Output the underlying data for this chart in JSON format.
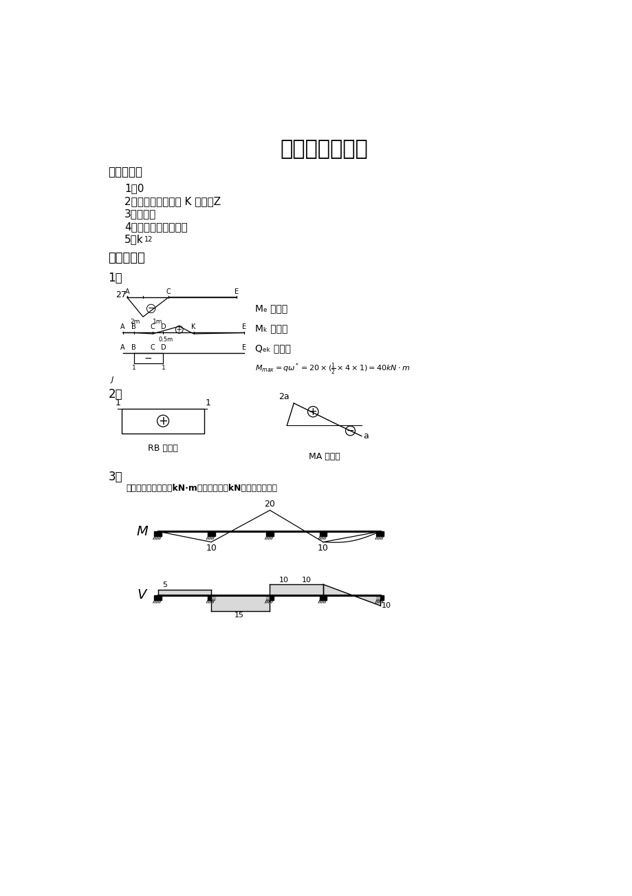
{
  "title": "结构力学第三次",
  "title_fontsize": 22,
  "bg_color": "#ffffff",
  "text_color": "#000000",
  "section1_title": "一、填空题",
  "item1": "1：0",
  "item2": "2：单位荷载移动到 K 点时，Z",
  "item3": "3：主振型",
  "item4": "4：所要求的广义位移",
  "item5": "5：k12",
  "section2_title": "二、作图题",
  "sub1": "1：",
  "sub2": "2：",
  "sub3": "3：",
  "ref_ans": "参考答案：弯矩图（kN·m）、剪力图（kN）如下图所示："
}
